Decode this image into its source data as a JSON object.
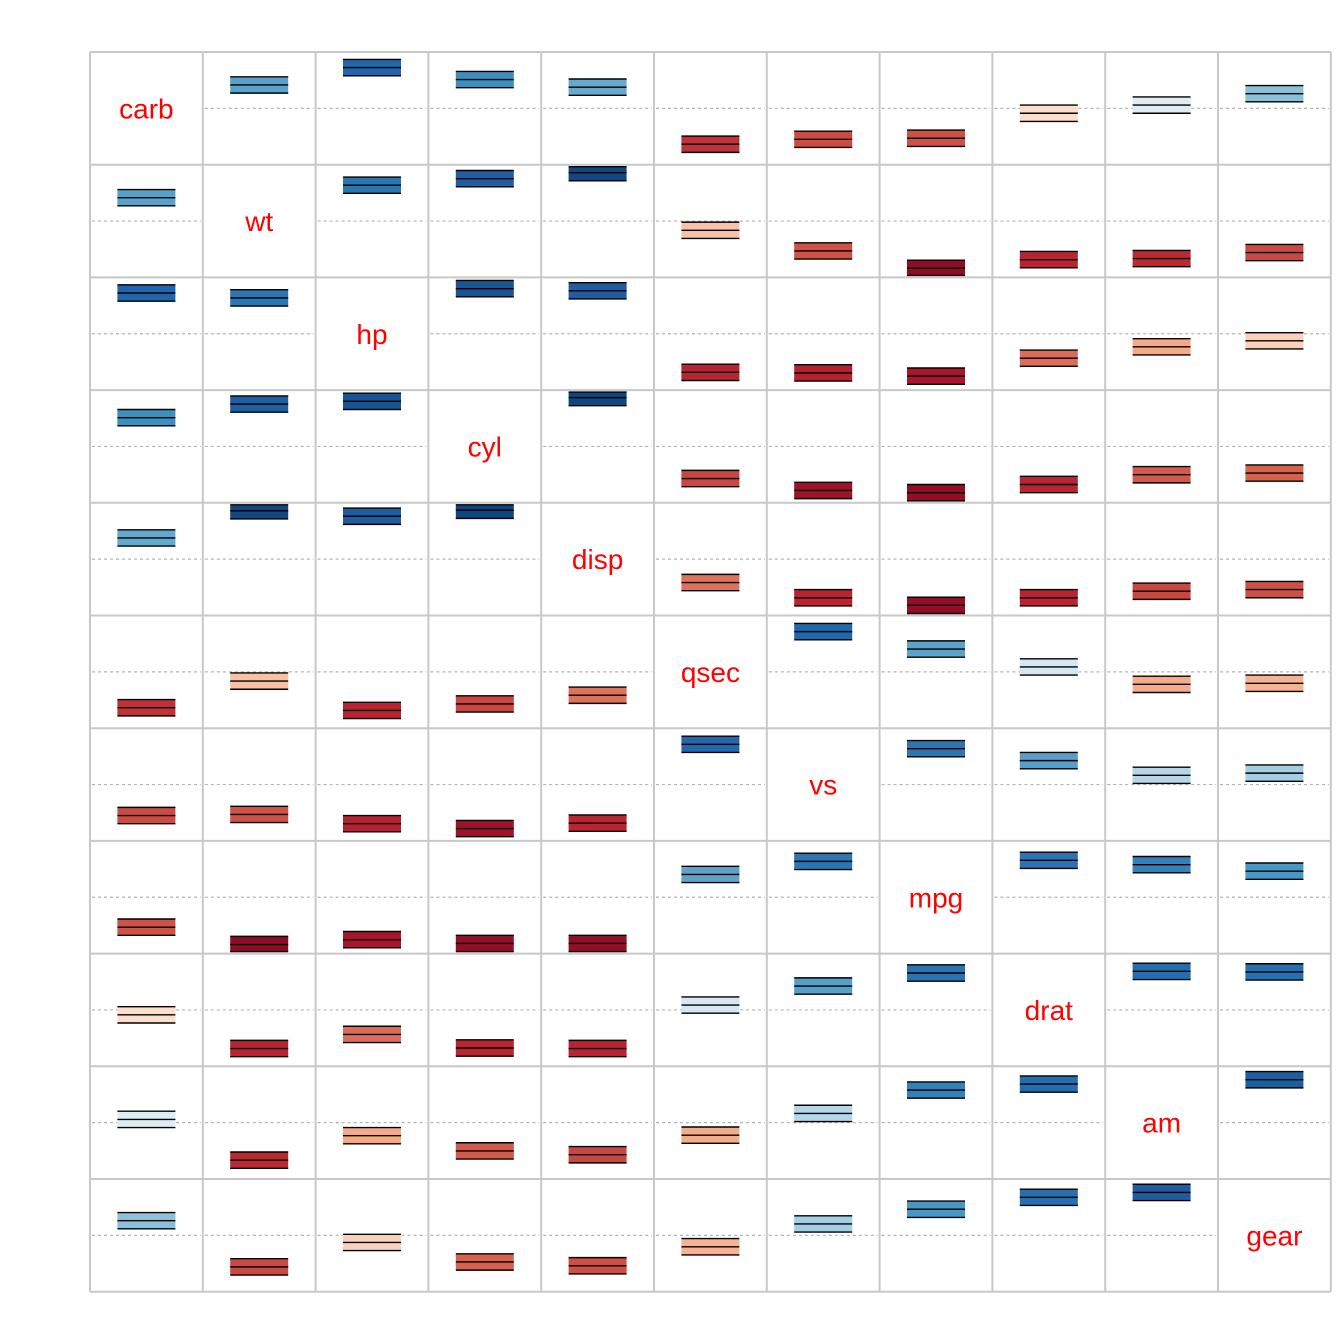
{
  "chart_data": {
    "type": "correlation-matrix",
    "method": "confint",
    "variables": [
      "carb",
      "wt",
      "hp",
      "cyl",
      "disp",
      "qsec",
      "vs",
      "mpg",
      "drat",
      "am",
      "gear"
    ],
    "ylim": [
      -1,
      1
    ],
    "correlations": [
      [
        1.0,
        0.43,
        0.75,
        0.53,
        0.39,
        -0.66,
        -0.57,
        -0.55,
        -0.09,
        0.06,
        0.27
      ],
      [
        0.43,
        1.0,
        0.66,
        0.78,
        0.89,
        -0.17,
        -0.55,
        -0.87,
        -0.71,
        -0.69,
        -0.58
      ],
      [
        0.75,
        0.66,
        1.0,
        0.83,
        0.79,
        -0.71,
        -0.72,
        -0.78,
        -0.45,
        -0.24,
        -0.13
      ],
      [
        0.53,
        0.78,
        0.83,
        1.0,
        0.9,
        -0.59,
        -0.81,
        -0.85,
        -0.7,
        -0.52,
        -0.49
      ],
      [
        0.39,
        0.89,
        0.79,
        0.9,
        1.0,
        -0.43,
        -0.71,
        -0.85,
        -0.71,
        -0.59,
        -0.56
      ],
      [
        -0.66,
        -0.17,
        -0.71,
        -0.59,
        -0.43,
        1.0,
        0.74,
        0.42,
        0.09,
        -0.23,
        -0.21
      ],
      [
        -0.57,
        -0.55,
        -0.72,
        -0.81,
        -0.71,
        0.74,
        1.0,
        0.66,
        0.44,
        0.17,
        0.21
      ],
      [
        -0.55,
        -0.87,
        -0.78,
        -0.85,
        -0.85,
        0.42,
        0.66,
        1.0,
        0.68,
        0.6,
        0.48
      ],
      [
        -0.09,
        -0.71,
        -0.45,
        -0.7,
        -0.71,
        0.09,
        0.44,
        0.68,
        1.0,
        0.71,
        0.7
      ],
      [
        0.06,
        -0.69,
        -0.24,
        -0.52,
        -0.59,
        -0.23,
        0.17,
        0.6,
        0.71,
        1.0,
        0.79
      ],
      [
        0.27,
        -0.58,
        -0.13,
        -0.49,
        -0.56,
        -0.21,
        0.21,
        0.48,
        0.7,
        0.79,
        1.0
      ]
    ],
    "ci_halfwidth": {
      "note": "confidence band half-width as fraction of correlation scale",
      "default": 0.15
    },
    "colors": {
      "neg_strong": "#67001f",
      "neg_mid": "#d6604d",
      "neg_light": "#fddbc7",
      "neutral": "#f7f7f7",
      "pos_light": "#d1e5f0",
      "pos_mid": "#4393c3",
      "pos_strong": "#053061",
      "label": "#ff0000",
      "grid": "#c8c8c8",
      "zero_line": "#b4b4b4"
    }
  }
}
